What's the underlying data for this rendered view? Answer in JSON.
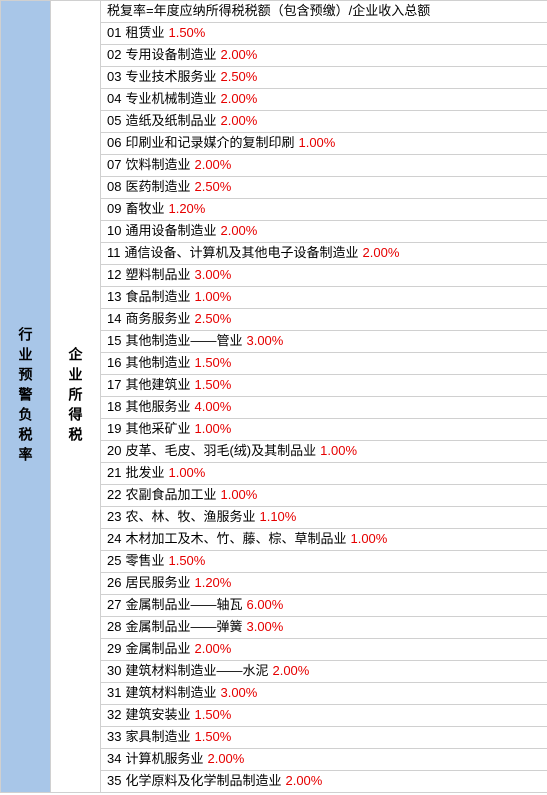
{
  "colors": {
    "sidebar_bg": "#a8c6e8",
    "border": "#d0d0d0",
    "rate_color": "#e60000",
    "text_color": "#000000",
    "bg": "#ffffff"
  },
  "sidebar": {
    "label": "行业预警负税率"
  },
  "category": {
    "label": "企业所得税"
  },
  "header": "税复率=年度应纳所得税税额（包含预缴）/企业收入总额",
  "rows": [
    {
      "num": "01",
      "name": "租赁业",
      "rate": "1.50%"
    },
    {
      "num": "02",
      "name": "专用设备制造业",
      "rate": "2.00%"
    },
    {
      "num": "03",
      "name": "专业技术服务业",
      "rate": "2.50%"
    },
    {
      "num": "04",
      "name": "专业机械制造业",
      "rate": "2.00%"
    },
    {
      "num": "05",
      "name": "造纸及纸制品业",
      "rate": "2.00%"
    },
    {
      "num": "06",
      "name": "印刷业和记录媒介的复制印刷",
      "rate": "1.00%"
    },
    {
      "num": "07",
      "name": "饮料制造业",
      "rate": "2.00%"
    },
    {
      "num": "08",
      "name": "医药制造业",
      "rate": "2.50%"
    },
    {
      "num": "09",
      "name": "畜牧业",
      "rate": "1.20%"
    },
    {
      "num": "10",
      "name": "通用设备制造业",
      "rate": "2.00%"
    },
    {
      "num": "11",
      "name": "通信设备、计算机及其他电子设备制造业",
      "rate": "2.00%"
    },
    {
      "num": "12",
      "name": "塑料制品业",
      "rate": "3.00%"
    },
    {
      "num": "13",
      "name": "食品制造业",
      "rate": "1.00%"
    },
    {
      "num": "14",
      "name": "商务服务业",
      "rate": "2.50%"
    },
    {
      "num": "15",
      "name": "其他制造业——管业",
      "rate": "3.00%"
    },
    {
      "num": "16",
      "name": "其他制造业",
      "rate": "1.50%"
    },
    {
      "num": "17",
      "name": "其他建筑业",
      "rate": "1.50%"
    },
    {
      "num": "18",
      "name": "其他服务业",
      "rate": "4.00%"
    },
    {
      "num": "19",
      "name": "其他采矿业",
      "rate": "1.00%"
    },
    {
      "num": "20",
      "name": "皮革、毛皮、羽毛(绒)及其制品业",
      "rate": "1.00%"
    },
    {
      "num": "21",
      "name": "批发业",
      "rate": "1.00%"
    },
    {
      "num": "22",
      "name": "农副食品加工业",
      "rate": "1.00%"
    },
    {
      "num": "23",
      "name": "农、林、牧、渔服务业",
      "rate": "1.10%"
    },
    {
      "num": "24",
      "name": "木材加工及木、竹、藤、棕、草制品业",
      "rate": "1.00%"
    },
    {
      "num": "25",
      "name": "零售业",
      "rate": "1.50%"
    },
    {
      "num": "26",
      "name": "居民服务业",
      "rate": "1.20%"
    },
    {
      "num": "27",
      "name": "金属制品业——轴瓦",
      "rate": "6.00%"
    },
    {
      "num": "28",
      "name": "金属制品业——弹簧",
      "rate": "3.00%"
    },
    {
      "num": "29",
      "name": "金属制品业",
      "rate": "2.00%"
    },
    {
      "num": "30",
      "name": "建筑材料制造业——水泥",
      "rate": "2.00%"
    },
    {
      "num": "31",
      "name": "建筑材料制造业",
      "rate": "3.00%"
    },
    {
      "num": "32",
      "name": "建筑安装业",
      "rate": "1.50%"
    },
    {
      "num": "33",
      "name": "家具制造业",
      "rate": "1.50%"
    },
    {
      "num": "34",
      "name": "计算机服务业",
      "rate": "2.00%"
    },
    {
      "num": "35",
      "name": "化学原料及化学制品制造业",
      "rate": "2.00%"
    }
  ]
}
